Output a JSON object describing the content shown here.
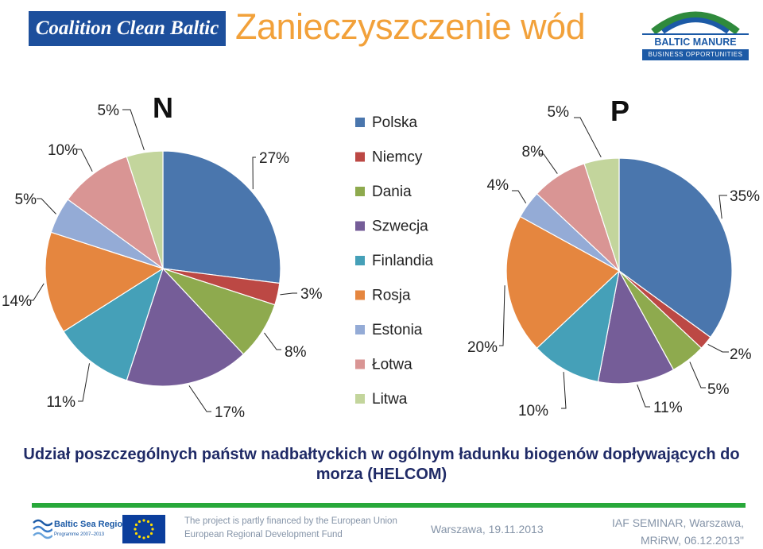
{
  "header": {
    "logo_left": "Coalition Clean Baltic",
    "title": "Zanieczyszczenie wód",
    "logo_right_name": "BALTIC MANURE",
    "logo_right_tagline": "BUSINESS OPPORTUNITIES"
  },
  "chart_data": [
    {
      "type": "pie",
      "title": "N",
      "categories": [
        "Polska",
        "Niemcy",
        "Dania",
        "Szwecja",
        "Finlandia",
        "Rosja",
        "Estonia",
        "Łotwa",
        "Litwa"
      ],
      "values": [
        27,
        3,
        8,
        17,
        11,
        14,
        5,
        10,
        5
      ],
      "labels": [
        "27%",
        "3%",
        "8%",
        "17%",
        "11%",
        "14%",
        "5%",
        "10%",
        "5%"
      ],
      "legend": "right"
    },
    {
      "type": "pie",
      "title": "P",
      "categories": [
        "Polska",
        "Niemcy",
        "Dania",
        "Szwecja",
        "Finlandia",
        "Rosja",
        "Estonia",
        "Łotwa",
        "Litwa"
      ],
      "values": [
        35,
        2,
        5,
        11,
        10,
        20,
        4,
        8,
        5
      ],
      "labels": [
        "35%",
        "2%",
        "5%",
        "11%",
        "10%",
        "20%",
        "4%",
        "8%",
        "5%"
      ],
      "legend": "left"
    }
  ],
  "legend": {
    "items": [
      "Polska",
      "Niemcy",
      "Dania",
      "Szwecja",
      "Finlandia",
      "Rosja",
      "Estonia",
      "Łotwa",
      "Litwa"
    ],
    "colors": [
      "#4a76ad",
      "#bc4844",
      "#8eaa4e",
      "#755d98",
      "#45a0b8",
      "#e5863f",
      "#94abd6",
      "#d99594",
      "#c3d59c"
    ]
  },
  "caption": "Udział poszczególnych państw nadbałtyckich w ogólnym ładunku biogenów dopływających do morza (HELCOM)",
  "footer": {
    "logo_left_name": "Baltic Sea Region",
    "logo_left_sub": "Programme 2007–2013",
    "funding_line1": "The project is partly financed by the European Union",
    "funding_line2": "European Regional Development Fund",
    "date": "Warszawa, 19.11.2013",
    "event_line1": "IAF SEMINAR, Warszawa,",
    "event_line2": "MRiRW, 06.12.2013\""
  }
}
